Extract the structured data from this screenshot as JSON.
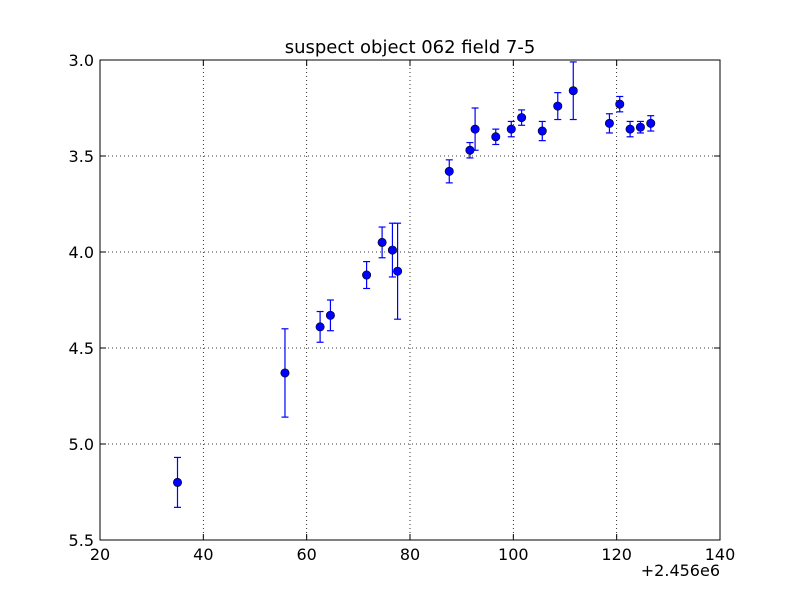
{
  "chart_data": {
    "type": "scatter",
    "title": "suspect object 062 field 7-5",
    "xlabel": "",
    "ylabel": "",
    "x_offset_label": "+2.456e6",
    "xlim": [
      20,
      140
    ],
    "ylim": [
      3.0,
      5.5
    ],
    "y_inverted": true,
    "grid": true,
    "x_ticks": [
      20,
      40,
      60,
      80,
      100,
      120,
      140
    ],
    "y_ticks": [
      3.0,
      3.5,
      4.0,
      4.5,
      5.0,
      5.5
    ],
    "x_tick_labels": [
      "20",
      "40",
      "60",
      "80",
      "100",
      "120",
      "140"
    ],
    "y_tick_labels": [
      "3.0",
      "3.5",
      "4.0",
      "4.5",
      "5.0",
      "5.5"
    ],
    "marker_color": "#0000ff",
    "errorbar_color": "#0000ff",
    "points": [
      {
        "x": 35.0,
        "y": 5.2,
        "err": 0.13
      },
      {
        "x": 55.8,
        "y": 4.63,
        "err": 0.23
      },
      {
        "x": 62.6,
        "y": 4.39,
        "err": 0.08
      },
      {
        "x": 64.6,
        "y": 4.33,
        "err": 0.08
      },
      {
        "x": 71.6,
        "y": 4.12,
        "err": 0.07
      },
      {
        "x": 74.6,
        "y": 3.95,
        "err": 0.08
      },
      {
        "x": 76.6,
        "y": 3.99,
        "err": 0.14
      },
      {
        "x": 77.6,
        "y": 4.1,
        "err": 0.25
      },
      {
        "x": 87.6,
        "y": 3.58,
        "err": 0.06
      },
      {
        "x": 91.6,
        "y": 3.47,
        "err": 0.04
      },
      {
        "x": 92.6,
        "y": 3.36,
        "err": 0.11
      },
      {
        "x": 96.6,
        "y": 3.4,
        "err": 0.04
      },
      {
        "x": 99.6,
        "y": 3.36,
        "err": 0.04
      },
      {
        "x": 101.6,
        "y": 3.3,
        "err": 0.04
      },
      {
        "x": 105.6,
        "y": 3.37,
        "err": 0.05
      },
      {
        "x": 108.6,
        "y": 3.24,
        "err": 0.07
      },
      {
        "x": 111.6,
        "y": 3.16,
        "err": 0.15
      },
      {
        "x": 118.6,
        "y": 3.33,
        "err": 0.05
      },
      {
        "x": 120.6,
        "y": 3.23,
        "err": 0.04
      },
      {
        "x": 122.6,
        "y": 3.36,
        "err": 0.04
      },
      {
        "x": 124.6,
        "y": 3.35,
        "err": 0.03
      },
      {
        "x": 126.6,
        "y": 3.33,
        "err": 0.04
      }
    ]
  }
}
